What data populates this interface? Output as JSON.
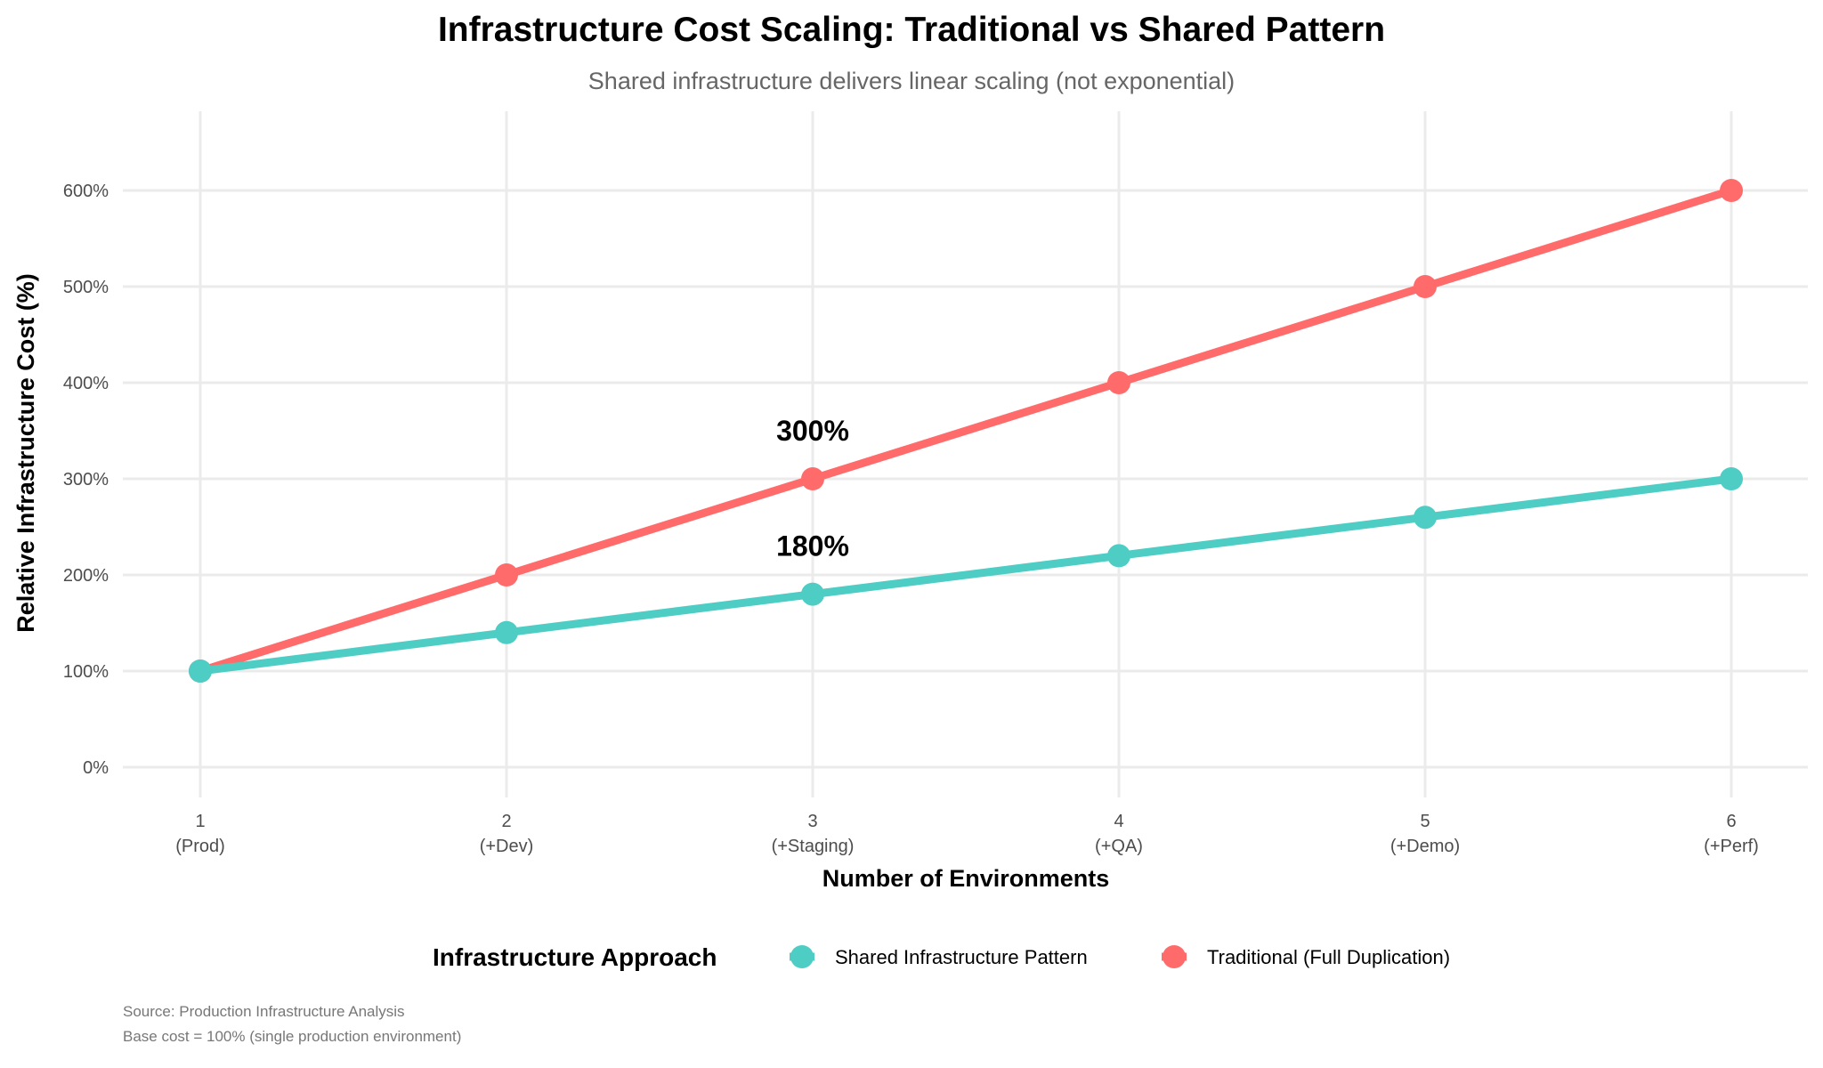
{
  "chart_data": {
    "type": "line",
    "title": "Infrastructure Cost Scaling: Traditional vs Shared Pattern",
    "subtitle": "Shared infrastructure delivers linear scaling (not exponential)",
    "xlabel": "Number of Environments",
    "ylabel": "Relative Infrastructure Cost (%)",
    "x": [
      1,
      2,
      3,
      4,
      5,
      6
    ],
    "x_tick_labels": [
      {
        "num": "1",
        "sub": "(Prod)"
      },
      {
        "num": "2",
        "sub": "(+Dev)"
      },
      {
        "num": "3",
        "sub": "(+Staging)"
      },
      {
        "num": "4",
        "sub": "(+QA)"
      },
      {
        "num": "5",
        "sub": "(+Demo)"
      },
      {
        "num": "6",
        "sub": "(+Perf)"
      }
    ],
    "y_ticks": [
      0,
      100,
      200,
      300,
      400,
      500,
      600
    ],
    "y_tick_labels": [
      "0%",
      "100%",
      "200%",
      "300%",
      "400%",
      "500%",
      "600%"
    ],
    "ylim": [
      -10,
      680
    ],
    "xlim": [
      0.75,
      6.25
    ],
    "grid": true,
    "legend": {
      "title": "Infrastructure Approach",
      "placement": "bottom"
    },
    "series": [
      {
        "name": "Shared Infrastructure Pattern",
        "color": "#4ECDC4",
        "values": [
          100,
          140,
          180,
          220,
          260,
          300
        ]
      },
      {
        "name": "Traditional (Full Duplication)",
        "color": "#FF6B6B",
        "values": [
          100,
          200,
          300,
          400,
          500,
          600
        ]
      }
    ],
    "annotations": [
      {
        "x": 3,
        "y": 350,
        "text": "300%"
      },
      {
        "x": 3,
        "y": 230,
        "text": "180%"
      }
    ],
    "caption": [
      "Source: Production Infrastructure Analysis",
      "Base cost = 100% (single production environment)"
    ]
  }
}
